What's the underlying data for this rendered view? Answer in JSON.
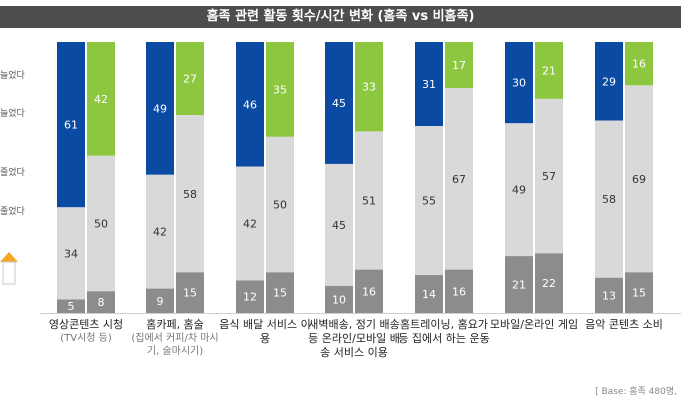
{
  "chart_data": {
    "type": "bar",
    "stacked": true,
    "title": "홈족 관련 활동 횟수/시간 변화 (홈족 vs 비홈족)",
    "groups": [
      "홈족",
      "비홈족"
    ],
    "categories": [
      {
        "label": "영상콘텐츠 시청",
        "sub": "(TV시청 등)"
      },
      {
        "label": "홈카페, 홈술",
        "sub": "(집에서 커피/차 마시기, 술마시기)"
      },
      {
        "label": "음식 배달 서비스 이용",
        "sub": ""
      },
      {
        "label": "새벽배송, 정기 배송 등 온라인/모바일 배송 서비스 이용",
        "sub": ""
      },
      {
        "label": "홈트레이닝, 홈요가 등 집에서 하는 운동",
        "sub": ""
      },
      {
        "label": "모바일/온라인 게임",
        "sub": ""
      },
      {
        "label": "음악 콘텐츠 소비",
        "sub": ""
      }
    ],
    "series_homejok": {
      "top": [
        61,
        49,
        46,
        45,
        31,
        30,
        29
      ],
      "middle": [
        34,
        42,
        42,
        45,
        55,
        49,
        58
      ],
      "bottom": [
        5,
        9,
        12,
        10,
        14,
        21,
        13
      ]
    },
    "series_nonhomejok": {
      "top": [
        42,
        27,
        35,
        33,
        17,
        21,
        16
      ],
      "middle": [
        50,
        58,
        50,
        51,
        67,
        57,
        69
      ],
      "bottom": [
        8,
        15,
        15,
        16,
        16,
        22,
        15
      ]
    },
    "ylim": [
      0,
      100
    ],
    "colors": {
      "homejok_top": "#0b4aa2",
      "nonhomejok_top": "#8dc63f",
      "middle": "#d9d9d9",
      "bottom": "#8c8c8c",
      "label_light": "#ffffff",
      "label_dark": "#333333"
    }
  },
  "legend_fragments": [
    "늘었다",
    "늘었다",
    "줄었다",
    "줄었다"
  ],
  "base_note": "[ Base: 홈족 480명, "
}
